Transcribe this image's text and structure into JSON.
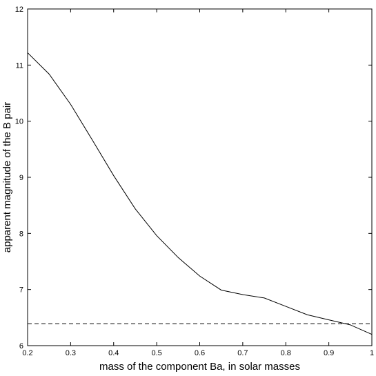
{
  "chart_data": {
    "type": "line",
    "title": "",
    "xlabel": "mass of the component Ba, in solar masses",
    "ylabel": "apparent magnitude of the B pair",
    "xlim": [
      0.2,
      1.0
    ],
    "ylim": [
      6,
      12
    ],
    "x_ticks": [
      "0.2",
      "0.3",
      "0.4",
      "0.5",
      "0.6",
      "0.7",
      "0.8",
      "0.9",
      "1"
    ],
    "y_ticks": [
      "6",
      "7",
      "8",
      "9",
      "10",
      "11",
      "12"
    ],
    "grid": false,
    "series": [
      {
        "style": "solid",
        "color": "#000000",
        "x": [
          0.2,
          0.25,
          0.3,
          0.35,
          0.4,
          0.45,
          0.5,
          0.55,
          0.6,
          0.65,
          0.7,
          0.75,
          0.8,
          0.85,
          0.9,
          0.95,
          1.0
        ],
        "y": [
          11.22,
          10.84,
          10.3,
          9.67,
          9.03,
          8.44,
          7.96,
          7.57,
          7.24,
          6.99,
          6.91,
          6.85,
          6.7,
          6.55,
          6.46,
          6.37,
          6.2
        ]
      },
      {
        "style": "dashed",
        "color": "#000000",
        "x": [
          0.2,
          1.0
        ],
        "y": [
          6.39,
          6.39
        ]
      }
    ]
  }
}
